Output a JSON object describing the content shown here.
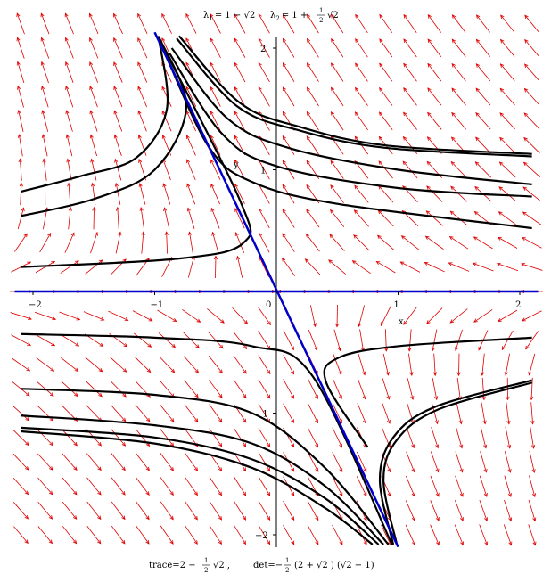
{
  "chart_data": {
    "type": "phase-portrait",
    "title": {
      "lambda1_label": "λ",
      "lambda1_sub": "1",
      "lambda1_expr": "= 1 − √2",
      "lambda2_label": "λ",
      "lambda2_sub": "2",
      "lambda2_expr": "= 1 +",
      "lambda2_frac_num": "1",
      "lambda2_frac_den": "2",
      "lambda2_tail": "√2"
    },
    "caption": {
      "trace_prefix": "trace=2 −",
      "trace_frac_num": "1",
      "trace_frac_den": "2",
      "trace_tail": "√2 ,",
      "det_prefix": "det=−",
      "det_frac_num": "1",
      "det_frac_den": "2",
      "det_tail": "(2 + √2 ) (√2 − 1)"
    },
    "xlabel": "x",
    "ylabel": "y",
    "xlim": [
      -2.15,
      2.15
    ],
    "ylim": [
      -2.1,
      2.2
    ],
    "x_ticks": [
      {
        "value": -2,
        "label": "−2"
      },
      {
        "value": -1,
        "label": "−1"
      },
      {
        "value": 0,
        "label": "0"
      },
      {
        "value": 1,
        "label": "1"
      },
      {
        "value": 2,
        "label": "2"
      }
    ],
    "y_ticks": [
      {
        "value": -2,
        "label": "−2"
      },
      {
        "value": -1,
        "label": "−1"
      },
      {
        "value": 1,
        "label": "1"
      },
      {
        "value": 2,
        "label": "2"
      }
    ],
    "colors": {
      "field": "#e00000",
      "trajectory": "#000000",
      "eigenline": "#0000c8",
      "axis": "#000000"
    },
    "eigenlines": [
      {
        "name": "",
        "points": [
          [
            -1.0,
            2.13
          ],
          [
            1.0,
            -2.1
          ]
        ]
      },
      {
        "name": "",
        "points": [
          [
            -2.15,
            0
          ],
          [
            2.15,
            0
          ]
        ]
      }
    ],
    "trajectories": [
      [
        [
          -0.8,
          2.1
        ],
        [
          -0.3,
          1.55
        ],
        [
          0.2,
          1.35
        ],
        [
          0.9,
          1.2
        ],
        [
          2.1,
          1.13
        ]
      ],
      [
        [
          -0.82,
          2.08
        ],
        [
          -0.32,
          1.52
        ],
        [
          0.2,
          1.32
        ],
        [
          0.9,
          1.18
        ],
        [
          2.1,
          1.11
        ]
      ],
      [
        [
          -0.86,
          2.0
        ],
        [
          -0.4,
          1.42
        ],
        [
          0.1,
          1.18
        ],
        [
          1.0,
          1.0
        ],
        [
          2.1,
          0.88
        ]
      ],
      [
        [
          -0.88,
          1.96
        ],
        [
          -0.45,
          1.3
        ],
        [
          0.0,
          1.03
        ],
        [
          1.0,
          0.85
        ],
        [
          2.1,
          0.78
        ]
      ],
      [
        [
          -0.9,
          1.92
        ],
        [
          -0.55,
          1.18
        ],
        [
          -0.2,
          0.9
        ],
        [
          0.5,
          0.72
        ],
        [
          2.1,
          0.52
        ]
      ],
      [
        [
          -0.97,
          2.1
        ],
        [
          -0.9,
          1.5
        ],
        [
          -1.15,
          1.1
        ],
        [
          -1.6,
          0.95
        ],
        [
          -2.1,
          0.82
        ]
      ],
      [
        [
          -0.96,
          2.08
        ],
        [
          -0.74,
          1.52
        ],
        [
          -1.0,
          1.0
        ],
        [
          -1.5,
          0.76
        ],
        [
          -2.1,
          0.62
        ]
      ],
      [
        [
          -0.95,
          2.05
        ],
        [
          -0.3,
          0.75
        ],
        [
          -0.27,
          0.4
        ],
        [
          -0.8,
          0.27
        ],
        [
          -2.1,
          0.2
        ]
      ],
      [
        [
          -2.1,
          -0.35
        ],
        [
          -1.0,
          -0.38
        ],
        [
          -0.2,
          -0.45
        ],
        [
          0.3,
          -0.7
        ],
        [
          0.95,
          -2.08
        ]
      ],
      [
        [
          -2.1,
          -0.8
        ],
        [
          -1.0,
          -0.85
        ],
        [
          -0.2,
          -1.0
        ],
        [
          0.4,
          -1.45
        ],
        [
          0.92,
          -2.08
        ]
      ],
      [
        [
          -2.1,
          -1.02
        ],
        [
          -1.0,
          -1.1
        ],
        [
          -0.2,
          -1.25
        ],
        [
          0.4,
          -1.6
        ],
        [
          0.88,
          -2.08
        ]
      ],
      [
        [
          -2.1,
          -1.12
        ],
        [
          -1.0,
          -1.2
        ],
        [
          -0.2,
          -1.38
        ],
        [
          0.4,
          -1.7
        ],
        [
          0.84,
          -2.08
        ]
      ],
      [
        [
          -2.1,
          -1.15
        ],
        [
          -1.0,
          -1.25
        ],
        [
          -0.2,
          -1.45
        ],
        [
          0.4,
          -1.78
        ],
        [
          0.79,
          -2.08
        ]
      ],
      [
        [
          0.75,
          -1.28
        ],
        [
          0.41,
          -0.75
        ],
        [
          0.5,
          -0.55
        ],
        [
          1.0,
          -0.45
        ],
        [
          2.1,
          -0.38
        ]
      ],
      [
        [
          0.96,
          -2.08
        ],
        [
          0.85,
          -1.55
        ],
        [
          0.96,
          -1.2
        ],
        [
          1.3,
          -0.95
        ],
        [
          2.1,
          -0.73
        ]
      ],
      [
        [
          0.99,
          -2.08
        ],
        [
          0.88,
          -1.55
        ],
        [
          0.99,
          -1.22
        ],
        [
          1.33,
          -0.97
        ],
        [
          2.1,
          -0.75
        ]
      ]
    ],
    "vector_field": {
      "x_step": 0.2,
      "y_step": 0.2,
      "arrow_length": 0.18
    }
  }
}
